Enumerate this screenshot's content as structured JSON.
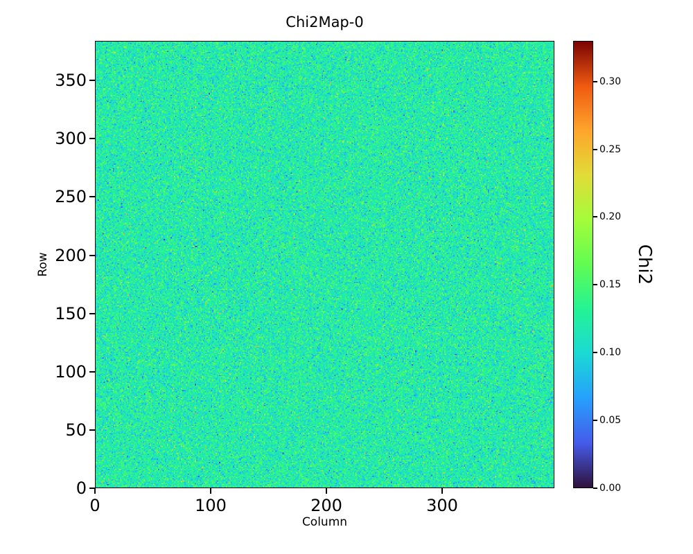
{
  "chart_data": {
    "type": "heatmap",
    "title": "Chi2Map-0",
    "xlabel": "Column",
    "ylabel": "Row",
    "x_range": [
      0,
      397
    ],
    "y_range": [
      0,
      384
    ],
    "x_ticks": [
      {
        "value": 0,
        "label": "0"
      },
      {
        "value": 100,
        "label": "100"
      },
      {
        "value": 200,
        "label": "200"
      },
      {
        "value": 300,
        "label": "300"
      }
    ],
    "y_ticks": [
      {
        "value": 0,
        "label": "0"
      },
      {
        "value": 50,
        "label": "50"
      },
      {
        "value": 100,
        "label": "100"
      },
      {
        "value": 150,
        "label": "150"
      },
      {
        "value": 200,
        "label": "200"
      },
      {
        "value": 250,
        "label": "250"
      },
      {
        "value": 300,
        "label": "300"
      },
      {
        "value": 350,
        "label": "350"
      }
    ],
    "grid": {
      "cols": 397,
      "rows": 384
    },
    "values_summary": {
      "distribution": "random gaussian noise",
      "mean": 0.122,
      "std": 0.023,
      "observed_range": [
        0.0,
        0.33
      ]
    },
    "colorbar": {
      "label": "Chi2",
      "vmin": 0.0,
      "vmax": 0.33,
      "ticks": [
        {
          "value": 0.0,
          "label": "0.00"
        },
        {
          "value": 0.05,
          "label": "0.05"
        },
        {
          "value": 0.1,
          "label": "0.10"
        },
        {
          "value": 0.15,
          "label": "0.15"
        },
        {
          "value": 0.2,
          "label": "0.20"
        },
        {
          "value": 0.25,
          "label": "0.25"
        },
        {
          "value": 0.3,
          "label": "0.30"
        }
      ],
      "colormap": "turbo",
      "stops": [
        [
          0.0,
          "#30123b"
        ],
        [
          0.1,
          "#455bea"
        ],
        [
          0.2,
          "#26a0fd"
        ],
        [
          0.3,
          "#1bd9d4"
        ],
        [
          0.4,
          "#24f394"
        ],
        [
          0.5,
          "#61fc52"
        ],
        [
          0.6,
          "#a4fc3b"
        ],
        [
          0.7,
          "#e1dc38"
        ],
        [
          0.8,
          "#fea52c"
        ],
        [
          0.9,
          "#ef5a11"
        ],
        [
          1.0,
          "#7a0403"
        ]
      ]
    },
    "legend": "none",
    "grid_lines": "off"
  },
  "colors": {
    "background": "#ffffff",
    "axis": "#000000",
    "text": "#000000"
  }
}
